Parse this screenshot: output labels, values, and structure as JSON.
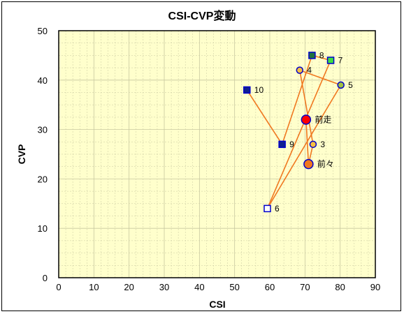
{
  "chart_data": {
    "type": "scatter",
    "title": "CSI-CVP変動",
    "xlabel": "CSI",
    "ylabel": "CVP",
    "xlim": [
      0,
      90
    ],
    "ylim": [
      0,
      50
    ],
    "x_ticks": [
      0,
      10,
      20,
      30,
      40,
      50,
      60,
      70,
      80,
      90
    ],
    "y_ticks": [
      0,
      10,
      20,
      30,
      40,
      50
    ],
    "grid": true,
    "plot_background": "#FFFFCC",
    "frame_color": "#000000",
    "grid_color": "#C8C8A0",
    "line_color": "#F07820",
    "path_order": [
      "前走",
      "前々",
      "3",
      "4",
      "5",
      "6",
      "7",
      "8",
      "9",
      "10"
    ],
    "points": [
      {
        "label": "前走",
        "x": 70.3,
        "y": 32.0,
        "marker": "circle",
        "size": "large",
        "fill": "#FF0000",
        "stroke": "#0000CC"
      },
      {
        "label": "前々",
        "x": 71.0,
        "y": 23.0,
        "marker": "circle",
        "size": "large",
        "fill": "#F07820",
        "stroke": "#0000CC"
      },
      {
        "label": "3",
        "x": 72.3,
        "y": 27.0,
        "marker": "circle",
        "size": "small",
        "fill": "#F8C040",
        "stroke": "#0000CC"
      },
      {
        "label": "4",
        "x": 68.5,
        "y": 42.0,
        "marker": "circle",
        "size": "small",
        "fill": "#F8C040",
        "stroke": "#0000CC"
      },
      {
        "label": "5",
        "x": 80.2,
        "y": 39.0,
        "marker": "circle",
        "size": "small",
        "fill": "#A0C040",
        "stroke": "#0000CC"
      },
      {
        "label": "6",
        "x": 59.3,
        "y": 14.0,
        "marker": "square",
        "size": "small",
        "fill": "#FFFFFF",
        "stroke": "#0000CC"
      },
      {
        "label": "7",
        "x": 77.3,
        "y": 44.0,
        "marker": "square",
        "size": "small",
        "fill": "#40E040",
        "stroke": "#0000CC"
      },
      {
        "label": "8",
        "x": 72.0,
        "y": 45.0,
        "marker": "square",
        "size": "small",
        "fill": "#207040",
        "stroke": "#0000CC"
      },
      {
        "label": "9",
        "x": 63.5,
        "y": 27.0,
        "marker": "square",
        "size": "small",
        "fill": "#102090",
        "stroke": "#0000CC"
      },
      {
        "label": "10",
        "x": 53.5,
        "y": 38.0,
        "marker": "square",
        "size": "small",
        "fill": "#102090",
        "stroke": "#0000CC"
      }
    ]
  }
}
